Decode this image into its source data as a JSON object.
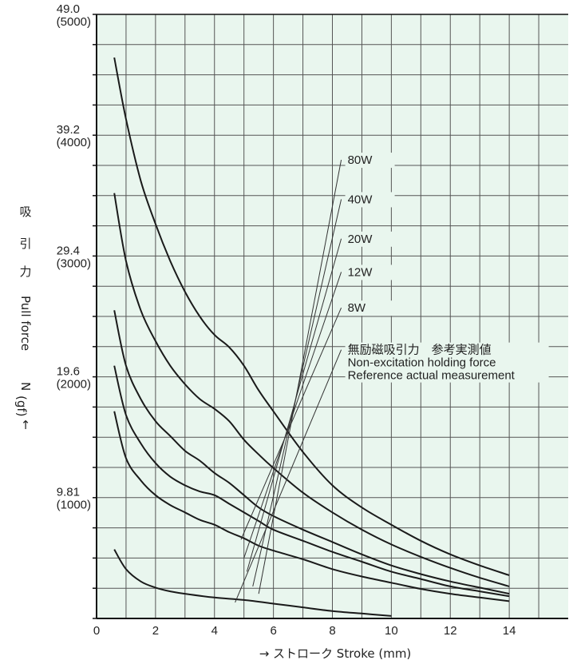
{
  "chart_data": {
    "type": "line",
    "xlabel": "→ ストローク Stroke (mm)",
    "ylabel_chars": [
      "吸",
      "引",
      "力",
      "Pull force",
      "N",
      "(gf)",
      "↑"
    ],
    "xlim": [
      0,
      16
    ],
    "ylim": [
      0,
      49.0
    ],
    "x_ticks": [
      "0",
      "2",
      "4",
      "6",
      "8",
      "10",
      "12",
      "14"
    ],
    "x_tick_values": [
      0,
      2,
      4,
      6,
      8,
      10,
      12,
      14
    ],
    "y_ticks": [
      {
        "value": 9.81,
        "label": "9.81",
        "sub": "(1000)"
      },
      {
        "value": 19.6,
        "label": "19.6",
        "sub": "(2000)"
      },
      {
        "value": 29.4,
        "label": "29.4",
        "sub": "(3000)"
      },
      {
        "value": 39.2,
        "label": "39.2",
        "sub": "(4000)"
      },
      {
        "value": 49.0,
        "label": "49.0",
        "sub": "(5000)"
      }
    ],
    "grid": true,
    "background": "#e9f6ee",
    "line_color": "#1a1a1a",
    "legend": [
      {
        "name": "80W"
      },
      {
        "name": "40W"
      },
      {
        "name": "20W"
      },
      {
        "name": "12W"
      },
      {
        "name": "8W"
      },
      {
        "name": "無励磁吸引力　参考実測値",
        "sub1": "Non-excitation holding force",
        "sub2": "Reference actual measurement"
      }
    ],
    "series": [
      {
        "name": "80W",
        "x": [
          0.6,
          1,
          1.5,
          2,
          2.5,
          3,
          3.5,
          4,
          4.5,
          5,
          5.5,
          6,
          7,
          8,
          9,
          10,
          11,
          12,
          13,
          14
        ],
        "y": [
          45.5,
          40.5,
          35.5,
          32.0,
          29.0,
          26.5,
          24.5,
          23.0,
          22.0,
          20.5,
          18.5,
          16.8,
          13.5,
          10.8,
          9.0,
          7.6,
          6.3,
          5.2,
          4.3,
          3.5
        ]
      },
      {
        "name": "40W",
        "x": [
          0.6,
          1,
          1.5,
          2,
          2.5,
          3,
          3.5,
          4,
          4.5,
          5,
          5.5,
          6,
          7,
          8,
          9,
          10,
          11,
          12,
          13,
          14
        ],
        "y": [
          34.5,
          29.0,
          25.0,
          22.5,
          20.5,
          19.0,
          17.8,
          17.0,
          16.0,
          14.5,
          13.3,
          12.2,
          10.2,
          8.6,
          7.2,
          6.0,
          5.0,
          4.1,
          3.3,
          2.6
        ]
      },
      {
        "name": "20W",
        "x": [
          0.6,
          1,
          1.5,
          2,
          2.5,
          3,
          3.5,
          4,
          4.5,
          5,
          5.5,
          6,
          7,
          8,
          9,
          10,
          11,
          12,
          13,
          14
        ],
        "y": [
          25.0,
          20.5,
          17.8,
          16.0,
          14.8,
          13.6,
          12.8,
          11.8,
          11.0,
          10.0,
          9.0,
          8.3,
          7.2,
          6.2,
          5.2,
          4.3,
          3.6,
          3.0,
          2.5,
          2.0
        ]
      },
      {
        "name": "12W",
        "x": [
          0.6,
          1,
          1.5,
          2,
          2.5,
          3,
          3.5,
          4,
          4.5,
          5,
          5.5,
          6,
          7,
          8,
          9,
          10,
          11,
          12,
          13,
          14
        ],
        "y": [
          20.5,
          16.5,
          14.2,
          12.6,
          11.5,
          10.8,
          10.3,
          10.0,
          9.3,
          8.6,
          7.9,
          7.2,
          6.3,
          5.4,
          4.6,
          3.8,
          3.2,
          2.6,
          2.2,
          1.8
        ]
      },
      {
        "name": "8W",
        "x": [
          0.6,
          1,
          1.5,
          2,
          2.5,
          3,
          3.5,
          4,
          4.5,
          5,
          5.5,
          6,
          7,
          8,
          9,
          10,
          11,
          12,
          13,
          14
        ],
        "y": [
          16.8,
          13.0,
          11.2,
          10.0,
          9.2,
          8.6,
          8.0,
          7.6,
          7.0,
          6.5,
          5.9,
          5.5,
          4.8,
          4.0,
          3.4,
          2.9,
          2.4,
          2.0,
          1.7,
          1.4
        ]
      },
      {
        "name": "無励磁吸引力",
        "x": [
          0.6,
          1,
          1.5,
          2,
          2.5,
          3,
          4,
          5,
          6,
          7,
          8,
          9,
          10
        ],
        "y": [
          5.6,
          4.0,
          3.0,
          2.5,
          2.2,
          2.0,
          1.7,
          1.5,
          1.2,
          0.9,
          0.6,
          0.4,
          0.2
        ]
      }
    ],
    "leaders": [
      {
        "from": [
          5.5,
          2.0
        ],
        "to": [
          8.3,
          37.2
        ]
      },
      {
        "from": [
          5.3,
          2.6
        ],
        "to": [
          8.3,
          34.0
        ]
      },
      {
        "from": [
          5.1,
          3.8
        ],
        "to": [
          8.3,
          30.8
        ]
      },
      {
        "from": [
          5.0,
          4.9
        ],
        "to": [
          8.3,
          28.1
        ]
      },
      {
        "from": [
          4.9,
          6.4
        ],
        "to": [
          8.3,
          25.2
        ]
      },
      {
        "from": [
          4.7,
          1.3
        ],
        "to": [
          8.3,
          21.8
        ]
      }
    ]
  }
}
